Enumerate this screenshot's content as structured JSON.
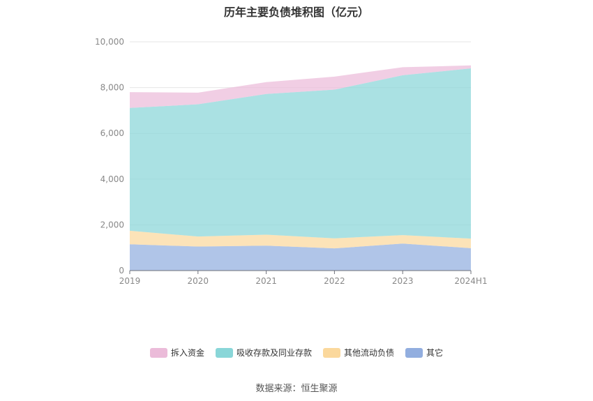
{
  "title": "历年主要负债堆积图（亿元）",
  "source_label": "数据来源：恒生聚源",
  "chart_data": {
    "type": "area",
    "stacked": true,
    "categories": [
      "2019",
      "2020",
      "2021",
      "2022",
      "2023",
      "2024H1"
    ],
    "ylim": [
      0,
      10000
    ],
    "yticks": [
      0,
      2000,
      4000,
      6000,
      8000,
      10000
    ],
    "ytick_labels": [
      "0",
      "2,000",
      "4,000",
      "6,000",
      "8,000",
      "10,000"
    ],
    "grid": true,
    "legend_position": "bottom",
    "series": [
      {
        "name": "其它",
        "color": "#92aedf",
        "values": [
          1150,
          1050,
          1090,
          970,
          1180,
          980
        ]
      },
      {
        "name": "其他流动负债",
        "color": "#fbd89c",
        "values": [
          590,
          440,
          480,
          440,
          370,
          420
        ]
      },
      {
        "name": "吸收存款及同业存款",
        "color": "#89d6d8",
        "values": [
          5370,
          5780,
          6150,
          6500,
          6990,
          7440
        ]
      },
      {
        "name": "拆入资金",
        "color": "#ebbbd9",
        "values": [
          690,
          510,
          520,
          570,
          350,
          130
        ]
      }
    ],
    "legend_order": [
      "拆入资金",
      "吸收存款及同业存款",
      "其他流动负债",
      "其它"
    ]
  }
}
